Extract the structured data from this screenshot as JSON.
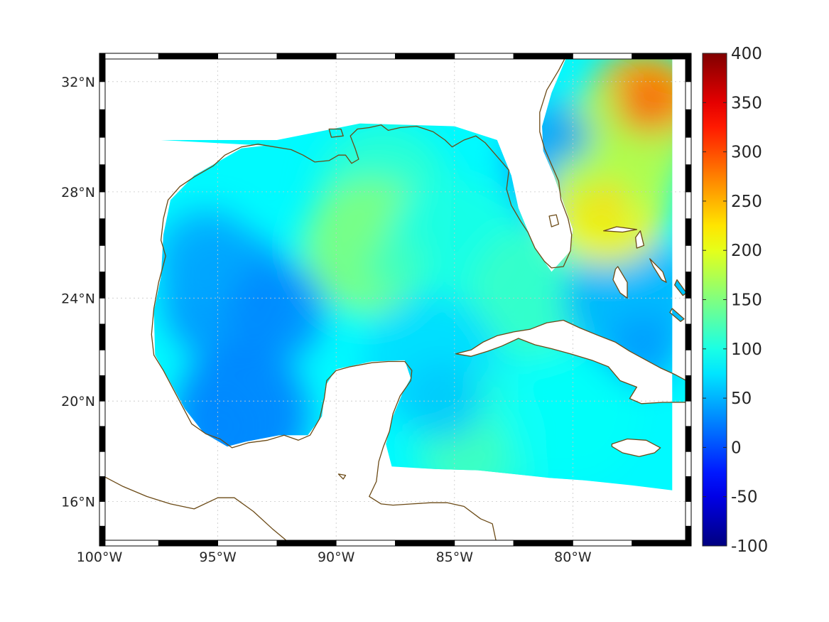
{
  "chart_data": {
    "type": "heatmap",
    "projection": "mercator",
    "lon_range": [
      -100,
      -75
    ],
    "lat_range": [
      14.2,
      33
    ],
    "grid": true,
    "colormap": "jet",
    "colorbar": {
      "min": -100,
      "max": 400,
      "ticks": [
        -100,
        -50,
        0,
        50,
        100,
        150,
        200,
        250,
        300,
        350,
        400
      ],
      "tick_labels": [
        "-100",
        "-50",
        "0",
        "50",
        "100",
        "150",
        "200",
        "250",
        "300",
        "350",
        "400"
      ],
      "placement": "right"
    },
    "lat_ticks": [
      16,
      20,
      24,
      28,
      32
    ],
    "lat_tick_labels": [
      "16°N",
      "20°N",
      "24°N",
      "28°N",
      "32°N"
    ],
    "lon_ticks": [
      -100,
      -95,
      -90,
      -85,
      -80
    ],
    "lon_tick_labels": [
      "100°W",
      "95°W",
      "90°W",
      "85°W",
      "80°W"
    ],
    "field_approx": [
      {
        "region": "western Gulf of Mexico",
        "lon": -94.5,
        "lat": 24,
        "value": 35
      },
      {
        "region": "Bay of Campeche",
        "lon": -94,
        "lat": 19.5,
        "value": 25
      },
      {
        "region": "central Gulf of Mexico",
        "lon": -89,
        "lat": 25.5,
        "value": 95
      },
      {
        "region": "northern Gulf of Mexico",
        "lon": -88,
        "lat": 28,
        "value": 110
      },
      {
        "region": "near 88.5W 26N",
        "lon": -88.5,
        "lat": 26,
        "value": 150
      },
      {
        "region": "eastern Gulf of Mexico",
        "lon": -85,
        "lat": 26,
        "value": 100
      },
      {
        "region": "Straits of Florida",
        "lon": -81.5,
        "lat": 24.2,
        "value": 115
      },
      {
        "region": "Yucatan Channel",
        "lon": -86,
        "lat": 21.5,
        "value": 70
      },
      {
        "region": "western Caribbean",
        "lon": -84,
        "lat": 18.5,
        "value": 105
      },
      {
        "region": "south of Cuba",
        "lon": -80,
        "lat": 19.5,
        "value": 90
      },
      {
        "region": "Bahamas",
        "lon": -77.5,
        "lat": 24,
        "value": 50
      },
      {
        "region": "Florida east coast",
        "lon": -80,
        "lat": 29,
        "value": 45
      },
      {
        "region": "Atlantic east of Georgia",
        "lon": -77,
        "lat": 31,
        "value": 250
      },
      {
        "region": "Atlantic near 78.5W 27.5N",
        "lon": -78.5,
        "lat": 27.5,
        "value": 215
      },
      {
        "region": "Atlantic east of Florida",
        "lon": -78,
        "lat": 29.5,
        "value": 170
      }
    ]
  }
}
